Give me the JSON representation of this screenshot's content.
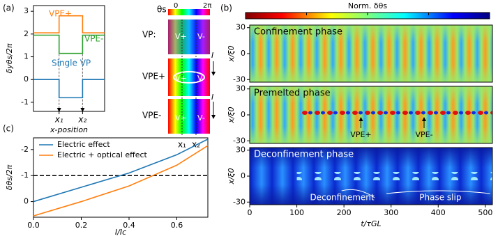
{
  "panel_labels": [
    "(a)",
    "(b)",
    "(c)"
  ],
  "chart_data": [
    {
      "type": "line",
      "ylabel": "δyθs/2π",
      "xlabel": "x-position",
      "x": [
        0,
        3.6,
        3.6,
        6.9,
        6.9,
        10
      ],
      "xlim": [
        0,
        10
      ],
      "xticks": [
        {
          "value": 3.6,
          "label": "x₁"
        },
        {
          "value": 6.9,
          "label": "x₂"
        }
      ],
      "ylim": [
        -1.4,
        3.25
      ],
      "yticks": [
        -1,
        0,
        1,
        2,
        3
      ],
      "series": [
        {
          "name": "VPE+",
          "color": "#ff7f0e",
          "values": [
            2.05,
            2.05,
            2.8,
            2.8,
            2.05,
            2.05
          ]
        },
        {
          "name": "VPE-",
          "color": "#2ca02c",
          "values": [
            1.95,
            1.95,
            1.15,
            1.15,
            1.95,
            1.95
          ]
        },
        {
          "name": "Single VP",
          "color": "#1f77b4",
          "values": [
            0,
            0,
            -0.8,
            -0.8,
            0,
            0
          ]
        }
      ]
    },
    {
      "type": "heatmap",
      "colorbar_label": "Norm. δθs",
      "xlabel": "t/τGL",
      "ylabel": "x/ξ0",
      "xlim": [
        0,
        515
      ],
      "xticks": [
        0,
        100,
        200,
        300,
        400,
        500
      ],
      "ylim": [
        -33,
        33
      ],
      "yticks": [
        -30,
        0,
        30
      ],
      "panels": [
        "Confinement phase",
        "Premelted phase",
        "Deconfinement phase"
      ],
      "annotations": [
        "VPE+",
        "VPE-",
        "Deconfinement",
        "Phase slip"
      ]
    },
    {
      "type": "line",
      "ylabel": "δθs/2π",
      "xlabel": "I/Ic",
      "x": [
        0,
        0.2,
        0.4,
        0.6,
        0.73
      ],
      "xlim": [
        0,
        0.73
      ],
      "xticks": [
        {
          "value": 0,
          "label": "0.0"
        },
        0.2,
        0.4,
        0.6
      ],
      "ylim": [
        0.6,
        -2.45
      ],
      "yticks": [
        0,
        -1,
        -2
      ],
      "hline": -1,
      "legend": "upper left",
      "series": [
        {
          "name": "Electric effect",
          "color": "#1f77b4",
          "values": [
            0,
            -0.55,
            -1.1,
            -1.8,
            -2.4
          ]
        },
        {
          "name": "Electric + optical effect",
          "color": "#ff7f0e",
          "values": [
            0.55,
            0,
            -0.6,
            -1.4,
            -2.15
          ]
        }
      ]
    }
  ],
  "schematic": {
    "colorbar_label": "θs",
    "colorbar_min": "0",
    "colorbar_max": "2π",
    "rows": [
      "VP:",
      "VPE+",
      "VPE-"
    ],
    "vortex_labels": [
      "V+",
      "V-"
    ],
    "current": "I",
    "positions": [
      "x₁",
      "x₂"
    ]
  }
}
